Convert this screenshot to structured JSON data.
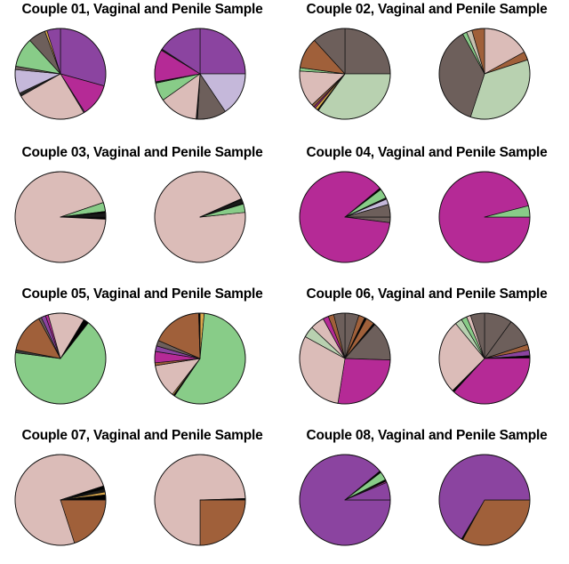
{
  "chart_data": [
    {
      "type": "pie",
      "title": "Couple 01, Vaginal and Penile Sample",
      "pies": [
        {
          "label": "Vaginal",
          "start_deg": 90,
          "slices": [
            {
              "value": 0.293,
              "color": "#8b44a0"
            },
            {
              "value": 0.117,
              "color": "#b52a96"
            },
            {
              "value": 0.004,
              "color": "#5a2d6a"
            },
            {
              "value": 0.254,
              "color": "#dbbcb8"
            },
            {
              "value": 0.006,
              "color": "#2a2a2a"
            },
            {
              "value": 0.006,
              "color": "#3a3a3a"
            },
            {
              "value": 0.085,
              "color": "#c5b8da"
            },
            {
              "value": 0.012,
              "color": "#6d5f5b"
            },
            {
              "value": 0.105,
              "color": "#88cc88"
            },
            {
              "value": 0.062,
              "color": "#6d5f5b"
            },
            {
              "value": 0.008,
              "color": "#d9a64a"
            },
            {
              "value": 0.048,
              "color": "#8b44a0"
            }
          ]
        },
        {
          "label": "Penile",
          "start_deg": 90,
          "slices": [
            {
              "value": 0.25,
              "color": "#8b44a0"
            },
            {
              "value": 0.156,
              "color": "#c5b8da"
            },
            {
              "value": 0.103,
              "color": "#6d5f5b"
            },
            {
              "value": 0.005,
              "color": "#1a1a1a"
            },
            {
              "value": 0.138,
              "color": "#dbbcb8"
            },
            {
              "value": 0.065,
              "color": "#88cc88"
            },
            {
              "value": 0.005,
              "color": "#1a1a1a"
            },
            {
              "value": 0.115,
              "color": "#b52a96"
            },
            {
              "value": 0.005,
              "color": "#1a1a1a"
            },
            {
              "value": 0.158,
              "color": "#8b44a0"
            }
          ]
        }
      ]
    },
    {
      "type": "pie",
      "title": "Couple 02, Vaginal and Penile Sample",
      "pies": [
        {
          "label": "Vaginal",
          "start_deg": 90,
          "slices": [
            {
              "value": 0.25,
              "color": "#6d5f5b"
            },
            {
              "value": 0.35,
              "color": "#b8d1b0"
            },
            {
              "value": 0.004,
              "color": "#000000"
            },
            {
              "value": 0.01,
              "color": "#d9a64a"
            },
            {
              "value": 0.006,
              "color": "#b52a96"
            },
            {
              "value": 0.01,
              "color": "#8b5a3c"
            },
            {
              "value": 0.13,
              "color": "#dbbcb8"
            },
            {
              "value": 0.012,
              "color": "#88cc88"
            },
            {
              "value": 0.11,
              "color": "#a0603a"
            },
            {
              "value": 0.118,
              "color": "#6d5f5b"
            }
          ]
        },
        {
          "label": "Penile",
          "start_deg": 90,
          "slices": [
            {
              "value": 0.17,
              "color": "#dbbcb8"
            },
            {
              "value": 0.03,
              "color": "#a0603a"
            },
            {
              "value": 0.35,
              "color": "#b8d1b0"
            },
            {
              "value": 0.37,
              "color": "#6d5f5b"
            },
            {
              "value": 0.015,
              "color": "#88cc88"
            },
            {
              "value": 0.02,
              "color": "#c8c0b0"
            },
            {
              "value": 0.045,
              "color": "#a0603a"
            }
          ]
        }
      ]
    },
    {
      "type": "pie",
      "title": "Couple 03, Vaginal and Penile Sample",
      "pies": [
        {
          "label": "Vaginal",
          "start_deg": 0,
          "slices": [
            {
              "value": 0.008,
              "color": "#000000"
            },
            {
              "value": 0.94,
              "color": "#dbbcb8"
            },
            {
              "value": 0.032,
              "color": "#88cc88"
            },
            {
              "value": 0.006,
              "color": "#000000"
            },
            {
              "value": 0.014,
              "color": "#1a1a1a"
            }
          ]
        },
        {
          "label": "Penile",
          "start_deg": 6,
          "slices": [
            {
              "value": 0.95,
              "color": "#dbbcb8"
            },
            {
              "value": 0.004,
              "color": "#000000"
            },
            {
              "value": 0.012,
              "color": "#1a1a1a"
            },
            {
              "value": 0.004,
              "color": "#000000"
            },
            {
              "value": 0.03,
              "color": "#88cc88"
            }
          ]
        }
      ]
    },
    {
      "type": "pie",
      "title": "Couple 04, Vaginal and Penile Sample",
      "pies": [
        {
          "label": "Vaginal",
          "start_deg": 0,
          "slices": [
            {
              "value": 0.02,
              "color": "#6d5f5b"
            },
            {
              "value": 0.87,
              "color": "#b52a96"
            },
            {
              "value": 0.006,
              "color": "#000000"
            },
            {
              "value": 0.034,
              "color": "#88cc88"
            },
            {
              "value": 0.005,
              "color": "#1a1a1a"
            },
            {
              "value": 0.02,
              "color": "#c5b8da"
            },
            {
              "value": 0.045,
              "color": "#6d5f5b"
            }
          ]
        },
        {
          "label": "Penile",
          "start_deg": 0,
          "slices": [
            {
              "value": 0.96,
              "color": "#b52a96"
            },
            {
              "value": 0.04,
              "color": "#88cc88"
            }
          ]
        }
      ]
    },
    {
      "type": "pie",
      "title": "Couple 05, Vaginal and Penile Sample",
      "pies": [
        {
          "label": "Vaginal",
          "start_deg": 52,
          "slices": [
            {
              "value": 0.665,
              "color": "#88cc88"
            },
            {
              "value": 0.01,
              "color": "#3a3a3a"
            },
            {
              "value": 0.14,
              "color": "#a0603a"
            },
            {
              "value": 0.01,
              "color": "#6d5f5b"
            },
            {
              "value": 0.016,
              "color": "#8b44a0"
            },
            {
              "value": 0.01,
              "color": "#b52a96"
            },
            {
              "value": 0.13,
              "color": "#dbbcb8"
            },
            {
              "value": 0.019,
              "color": "#000000"
            }
          ]
        },
        {
          "label": "Penile",
          "start_deg": 90,
          "slices": [
            {
              "value": 0.015,
              "color": "#d9a64a"
            },
            {
              "value": 0.58,
              "color": "#88cc88"
            },
            {
              "value": 0.005,
              "color": "#000000"
            },
            {
              "value": 0.005,
              "color": "#d9a64a"
            },
            {
              "value": 0.12,
              "color": "#dbbcb8"
            },
            {
              "value": 0.01,
              "color": "#a0603a"
            },
            {
              "value": 0.04,
              "color": "#b52a96"
            },
            {
              "value": 0.02,
              "color": "#8b44a0"
            },
            {
              "value": 0.02,
              "color": "#6d5f5b"
            },
            {
              "value": 0.18,
              "color": "#a0603a"
            },
            {
              "value": 0.005,
              "color": "#000000"
            }
          ]
        }
      ]
    },
    {
      "type": "pie",
      "title": "Couple 06, Vaginal and Penile Sample",
      "pies": [
        {
          "label": "Vaginal",
          "start_deg": 90,
          "slices": [
            {
              "value": 0.05,
              "color": "#6d5f5b"
            },
            {
              "value": 0.022,
              "color": "#a0603a"
            },
            {
              "value": 0.007,
              "color": "#000000"
            },
            {
              "value": 0.03,
              "color": "#a0603a"
            },
            {
              "value": 0.006,
              "color": "#000000"
            },
            {
              "value": 0.14,
              "color": "#6d5f5b"
            },
            {
              "value": 0.27,
              "color": "#b52a96"
            },
            {
              "value": 0.305,
              "color": "#dbbcb8"
            },
            {
              "value": 0.04,
              "color": "#b8d1b0"
            },
            {
              "value": 0.05,
              "color": "#dbbcb8"
            },
            {
              "value": 0.02,
              "color": "#b52a96"
            },
            {
              "value": 0.02,
              "color": "#a0603a"
            },
            {
              "value": 0.04,
              "color": "#6d5f5b"
            }
          ]
        },
        {
          "label": "Penile",
          "start_deg": 90,
          "slices": [
            {
              "value": 0.1,
              "color": "#6d5f5b"
            },
            {
              "value": 0.1,
              "color": "#6d5f5b"
            },
            {
              "value": 0.02,
              "color": "#a0603a"
            },
            {
              "value": 0.02,
              "color": "#8b44a0"
            },
            {
              "value": 0.008,
              "color": "#000000"
            },
            {
              "value": 0.37,
              "color": "#b52a96"
            },
            {
              "value": 0.007,
              "color": "#000000"
            },
            {
              "value": 0.265,
              "color": "#dbbcb8"
            },
            {
              "value": 0.025,
              "color": "#b8d1b0"
            },
            {
              "value": 0.02,
              "color": "#88cc88"
            },
            {
              "value": 0.015,
              "color": "#dbbcb8"
            },
            {
              "value": 0.05,
              "color": "#6d5f5b"
            }
          ]
        }
      ]
    },
    {
      "type": "pie",
      "title": "Couple 07, Vaginal and Penile Sample",
      "pies": [
        {
          "label": "Vaginal",
          "start_deg": 0,
          "slices": [
            {
              "value": 0.2,
              "color": "#a0603a"
            },
            {
              "value": 0.75,
              "color": "#dbbcb8"
            },
            {
              "value": 0.012,
              "color": "#000000"
            },
            {
              "value": 0.01,
              "color": "#1a1a1a"
            },
            {
              "value": 0.01,
              "color": "#d9a64a"
            },
            {
              "value": 0.018,
              "color": "#000000"
            }
          ]
        },
        {
          "label": "Penile",
          "start_deg": 0,
          "slices": [
            {
              "value": 0.25,
              "color": "#a0603a"
            },
            {
              "value": 0.745,
              "color": "#dbbcb8"
            },
            {
              "value": 0.005,
              "color": "#000000"
            }
          ]
        }
      ]
    },
    {
      "type": "pie",
      "title": "Couple 08, Vaginal and Penile Sample",
      "pies": [
        {
          "label": "Vaginal",
          "start_deg": 0,
          "slices": [
            {
              "value": 0.89,
              "color": "#8b44a0"
            },
            {
              "value": 0.006,
              "color": "#000000"
            },
            {
              "value": 0.03,
              "color": "#88cc88"
            },
            {
              "value": 0.006,
              "color": "#000000"
            },
            {
              "value": 0.005,
              "color": "#b52a96"
            },
            {
              "value": 0.063,
              "color": "#8b44a0"
            }
          ]
        },
        {
          "label": "Penile",
          "start_deg": 0,
          "slices": [
            {
              "value": 0.33,
              "color": "#a0603a"
            },
            {
              "value": 0.005,
              "color": "#000000"
            },
            {
              "value": 0.665,
              "color": "#8b44a0"
            }
          ]
        }
      ]
    }
  ]
}
